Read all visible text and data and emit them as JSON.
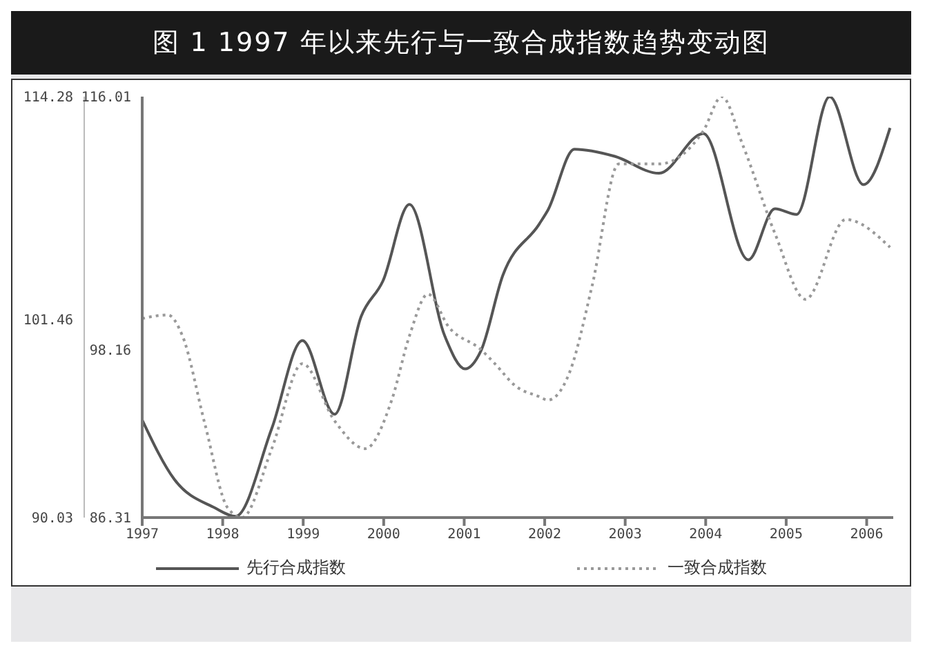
{
  "chart_data": {
    "type": "line",
    "title": "图 1  1997 年以来先行与一致合成指数趋势变动图",
    "xlim": [
      1997,
      2006.33
    ],
    "xticks": [
      1997,
      1998,
      1999,
      2000,
      2001,
      2002,
      2003,
      2004,
      2005,
      2006
    ],
    "ylim": [
      86.31,
      116.01
    ],
    "yticks": [
      86.31,
      98.16,
      116.01
    ],
    "y2lim": [
      90.03,
      114.28
    ],
    "y2ticks": [
      90.03,
      101.46,
      114.28
    ],
    "legend": "bottom",
    "grid": false,
    "marker": "none",
    "series": [
      {
        "name": "先行合成指数",
        "color": "#555555",
        "line_style": "solid",
        "axis": "y",
        "x": [
          1997.0,
          1997.4,
          1997.9,
          1998.16,
          1998.61,
          1998.99,
          1999.39,
          1999.72,
          1999.99,
          2000.32,
          2000.76,
          2001.01,
          2001.21,
          2001.48,
          2001.93,
          2002.04,
          2002.37,
          2002.87,
          2003.42,
          2003.97,
          2004.53,
          2004.86,
          2005.13,
          2005.54,
          2005.96,
          2006.29
        ],
        "values": [
          93.2,
          89.0,
          87.0,
          86.4,
          92.6,
          98.8,
          93.6,
          100.5,
          103.0,
          108.4,
          99.1,
          96.8,
          98.1,
          103.4,
          107.0,
          108.0,
          112.3,
          111.8,
          110.6,
          113.4,
          104.5,
          108.1,
          107.7,
          116.0,
          109.8,
          113.8
        ]
      },
      {
        "name": "一致合成指数",
        "color": "#999999",
        "line_style": "dotted",
        "axis": "y2",
        "x": [
          1997.0,
          1997.32,
          1997.5,
          1997.78,
          1998.06,
          1998.24,
          1998.61,
          1998.99,
          1999.39,
          1999.77,
          2000.1,
          2000.32,
          2000.55,
          2000.81,
          2001.21,
          2001.38,
          2001.64,
          2001.93,
          2002.04,
          2002.31,
          2002.59,
          2002.92,
          2003.42,
          2003.97,
          2004.2,
          2004.46,
          2004.86,
          2005.24,
          2005.74,
          2006.29
        ],
        "values": [
          101.5,
          101.7,
          100.5,
          95.4,
          90.6,
          90.03,
          94.0,
          98.9,
          95.6,
          94.0,
          96.8,
          100.5,
          102.9,
          101.0,
          99.7,
          98.9,
          97.6,
          97.0,
          96.8,
          98.4,
          103.4,
          110.4,
          110.4,
          112.3,
          114.28,
          111.5,
          106.4,
          102.6,
          107.2,
          105.6
        ]
      }
    ]
  }
}
